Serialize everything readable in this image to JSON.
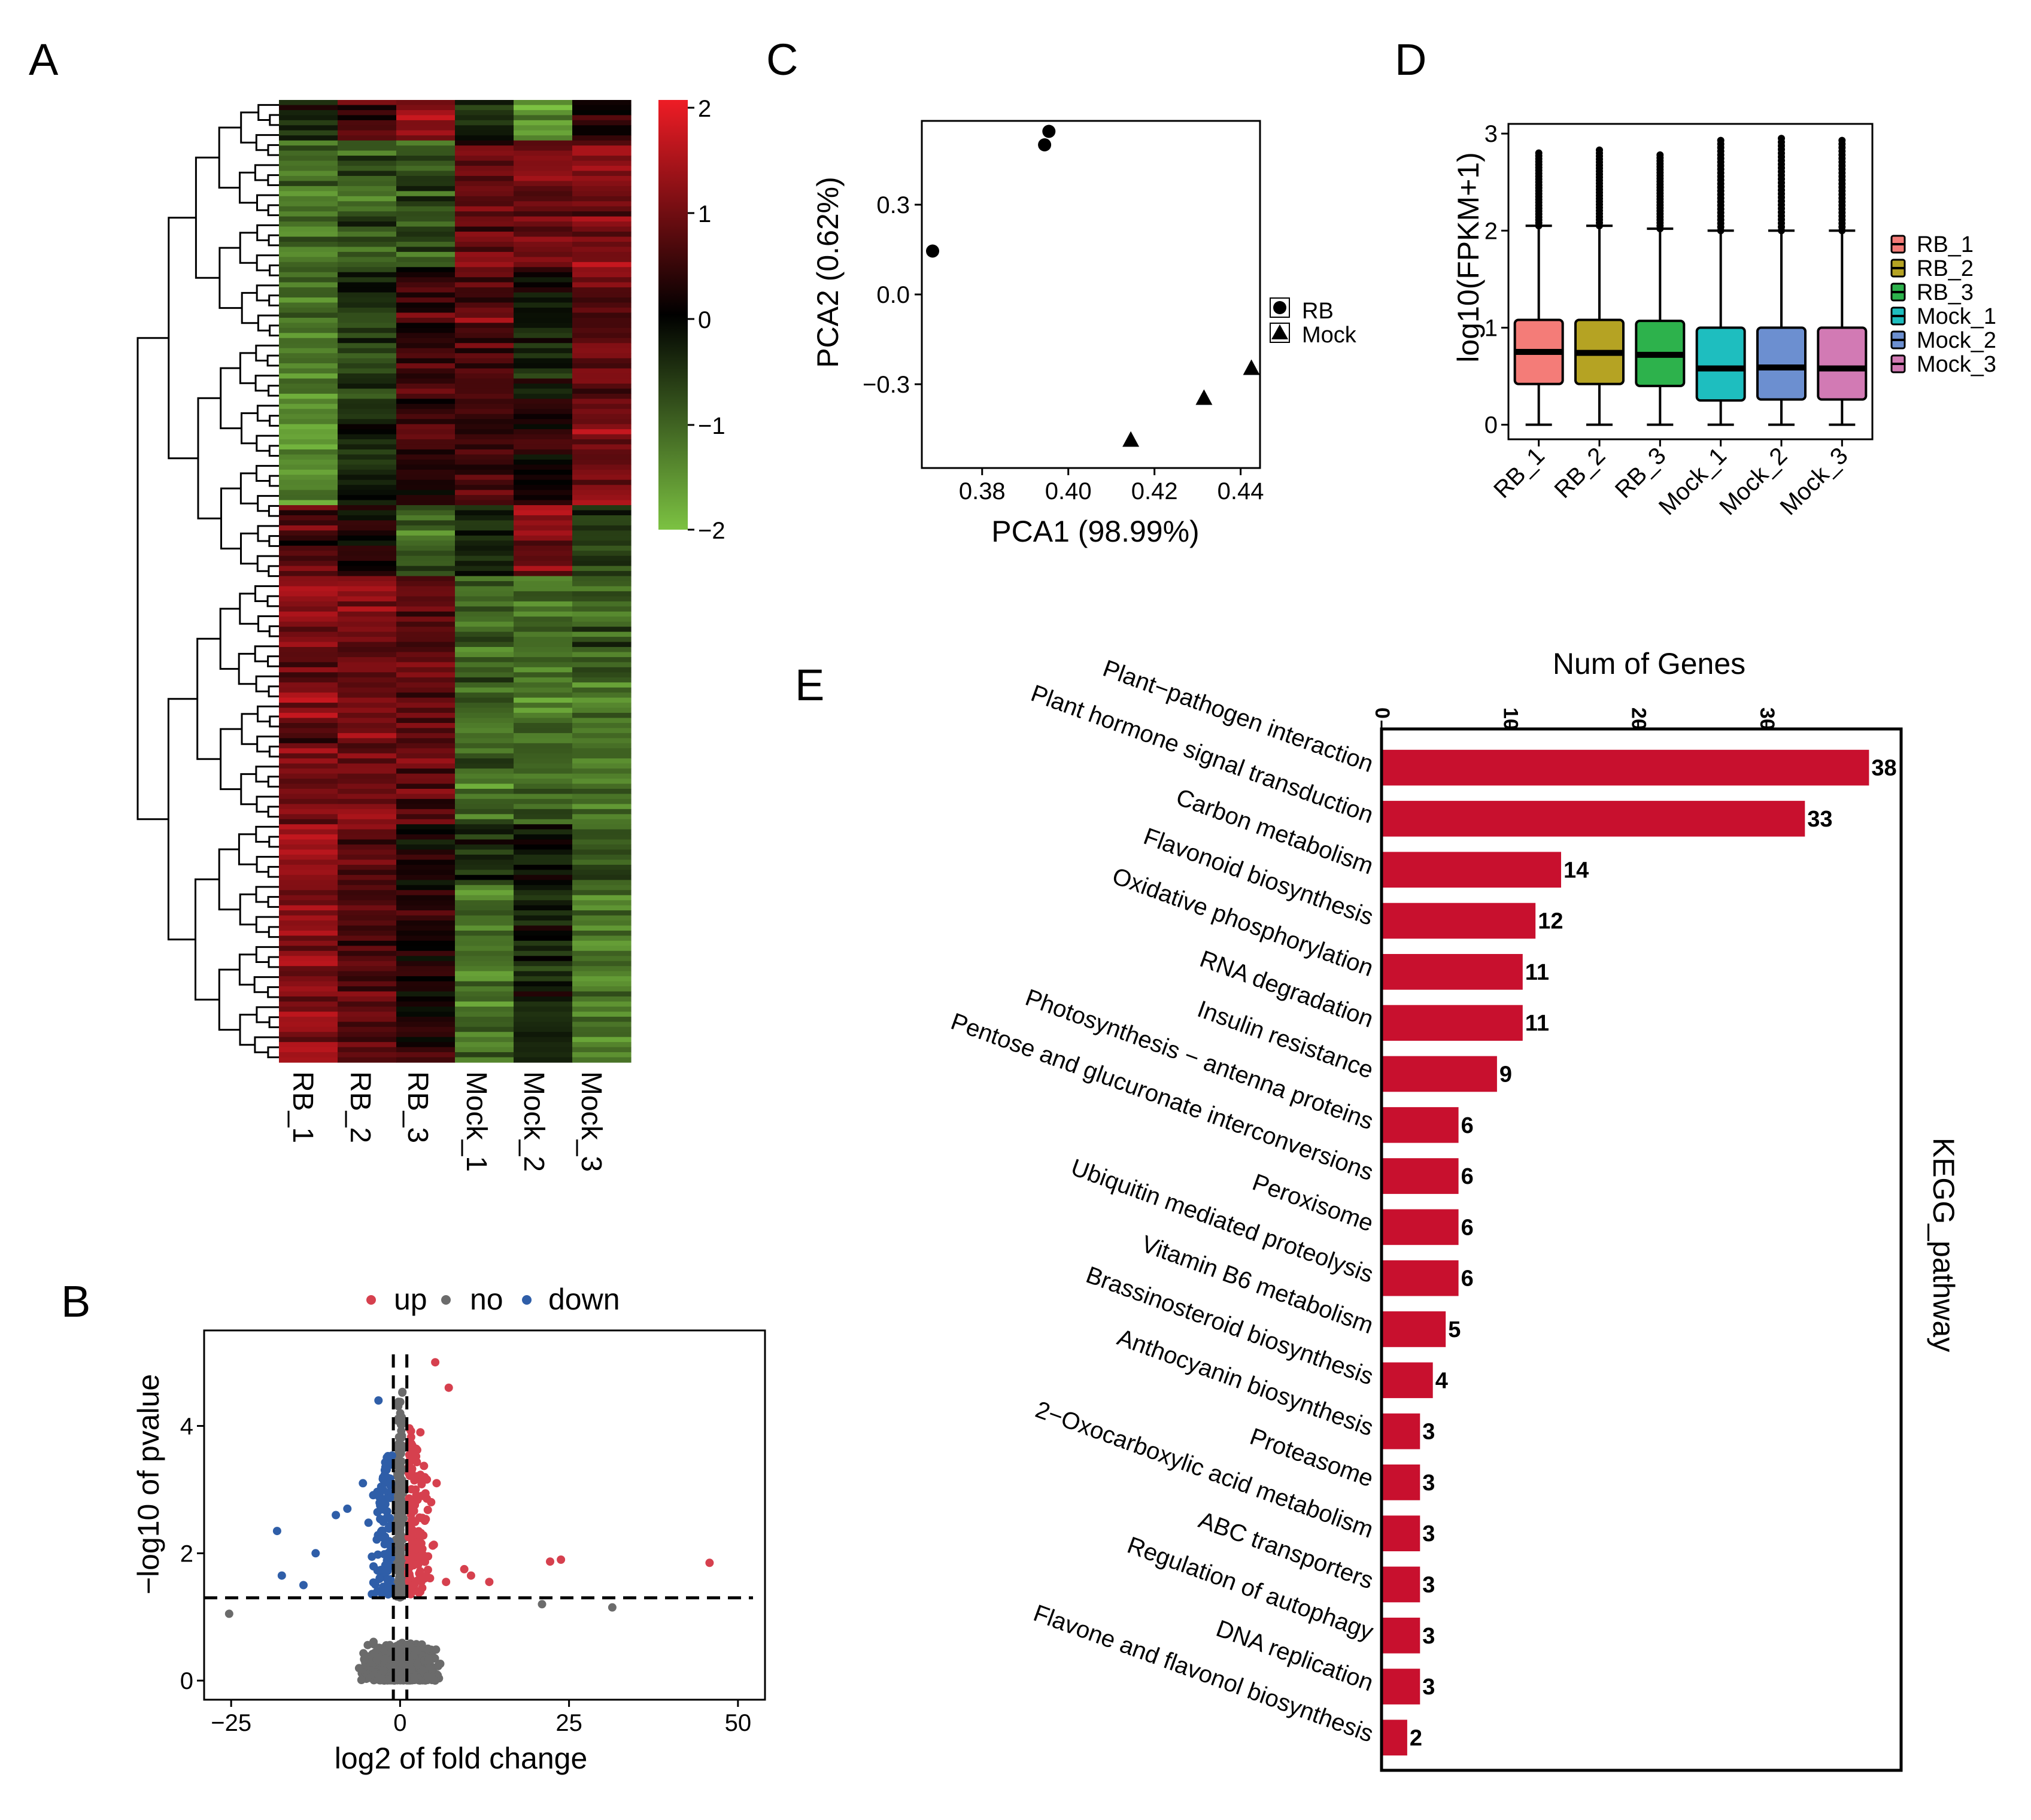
{
  "panel_letters": {
    "a": "A",
    "b": "B",
    "c": "C",
    "d": "D",
    "e": "E"
  },
  "heatmap": {
    "samples": [
      "RB_1",
      "RB_2",
      "RB_3",
      "Mock_1",
      "Mock_2",
      "Mock_3"
    ],
    "colorbar_ticks": [
      "2",
      "1",
      "0",
      "−1",
      "−2"
    ],
    "colors": {
      "high": "#ee1c25",
      "mid": "#000000",
      "low": "#7cc242"
    }
  },
  "chart_data": [
    {
      "id": "volcano",
      "type": "scatter",
      "legend": [
        {
          "name": "up",
          "color": "#d6404e"
        },
        {
          "name": "no",
          "color": "#6b6b6b"
        },
        {
          "name": "down",
          "color": "#2f5ea8"
        }
      ],
      "xlabel": "log2 of fold change",
      "ylabel": "−log10 of pvalue",
      "xlim": [
        -29,
        54
      ],
      "ylim": [
        -0.3,
        5.5
      ],
      "xticks": [
        -25,
        0,
        25,
        50
      ],
      "xtick_labels": [
        "−25",
        "0",
        "25",
        "50"
      ],
      "yticks": [
        0,
        2,
        4
      ],
      "ytick_labels": [
        "0",
        "2",
        "4"
      ],
      "thresholds": {
        "x": [
          -1,
          1
        ],
        "y": 1.3
      },
      "highlight_points": {
        "up": [
          [
            45.8,
            1.85
          ],
          [
            22.2,
            1.87
          ],
          [
            23.8,
            1.9
          ],
          [
            7.2,
            4.6
          ],
          [
            6.8,
            1.55
          ],
          [
            5.2,
            5.0
          ],
          [
            3.0,
            3.9
          ],
          [
            9.5,
            1.75
          ],
          [
            10.5,
            1.65
          ],
          [
            13.2,
            1.55
          ]
        ],
        "down": [
          [
            -18.2,
            2.35
          ],
          [
            -17.5,
            1.65
          ],
          [
            -12.5,
            2.0
          ],
          [
            -9.5,
            2.6
          ],
          [
            -7.8,
            2.7
          ],
          [
            -3.2,
            4.4
          ],
          [
            -5.5,
            3.1
          ],
          [
            -14.3,
            1.5
          ]
        ]
      },
      "outlier_no": [
        [
          31.4,
          1.15
        ],
        [
          -25.3,
          1.05
        ],
        [
          21.0,
          1.2
        ]
      ]
    },
    {
      "id": "pca",
      "type": "scatter",
      "xlabel": "PCA1 (98.99%)",
      "ylabel": "PCA2 (0.62%)",
      "xlim": [
        0.366,
        0.4445
      ],
      "ylim": [
        -0.58,
        0.58
      ],
      "xticks": [
        0.38,
        0.4,
        0.42,
        0.44
      ],
      "xtick_labels": [
        "0.38",
        "0.40",
        "0.42",
        "0.44"
      ],
      "yticks": [
        -0.3,
        0.0,
        0.3
      ],
      "ytick_labels": [
        "−0.3",
        "0.0",
        "0.3"
      ],
      "series": [
        {
          "name": "RB",
          "marker": "circle",
          "points": [
            [
              0.3685,
              0.145
            ],
            [
              0.3945,
              0.5
            ],
            [
              0.3955,
              0.545
            ]
          ]
        },
        {
          "name": "Mock",
          "marker": "triangle",
          "points": [
            [
              0.4145,
              -0.485
            ],
            [
              0.4315,
              -0.345
            ],
            [
              0.4425,
              -0.245
            ]
          ]
        }
      ]
    },
    {
      "id": "boxplot",
      "type": "box",
      "ylabel": "log10(FPKM+1)",
      "ylim": [
        -0.15,
        3.1
      ],
      "yticks": [
        0,
        1,
        2,
        3
      ],
      "ytick_labels": [
        "0",
        "1",
        "2",
        "3"
      ],
      "categories": [
        "RB_1",
        "RB_2",
        "RB_3",
        "Mock_1",
        "Mock_2",
        "Mock_3"
      ],
      "colors": [
        "#f47c78",
        "#b5a323",
        "#2db24c",
        "#1ebebf",
        "#6c8fd0",
        "#d27ab4"
      ],
      "boxes": [
        {
          "min": 0.0,
          "q1": 0.42,
          "median": 0.75,
          "q3": 1.08,
          "max": 2.05,
          "outlier_max": 2.8
        },
        {
          "min": 0.0,
          "q1": 0.42,
          "median": 0.74,
          "q3": 1.08,
          "max": 2.05,
          "outlier_max": 2.83
        },
        {
          "min": 0.0,
          "q1": 0.4,
          "median": 0.72,
          "q3": 1.07,
          "max": 2.02,
          "outlier_max": 2.78
        },
        {
          "min": 0.0,
          "q1": 0.25,
          "median": 0.58,
          "q3": 1.0,
          "max": 2.0,
          "outlier_max": 2.93
        },
        {
          "min": 0.0,
          "q1": 0.26,
          "median": 0.59,
          "q3": 1.0,
          "max": 2.0,
          "outlier_max": 2.95
        },
        {
          "min": 0.0,
          "q1": 0.26,
          "median": 0.58,
          "q3": 1.0,
          "max": 2.0,
          "outlier_max": 2.93
        }
      ]
    },
    {
      "id": "kegg",
      "type": "bar",
      "orientation": "horizontal",
      "xlabel": "Num of Genes",
      "ylabel": "KEGG_pathway",
      "xlim": [
        0,
        40.5
      ],
      "xticks": [
        0,
        10,
        20,
        30
      ],
      "xtick_labels": [
        "0",
        "10",
        "20",
        "30"
      ],
      "bar_color": "#c8102e",
      "categories": [
        "Plant−pathogen interaction",
        "Plant hormone signal transduction",
        "Carbon metabolism",
        "Flavonoid biosynthesis",
        "Oxidative phosphorylation",
        "RNA degradation",
        "Insulin resistance",
        "Photosynthesis − antenna proteins",
        "Pentose and glucuronate interconversions",
        "Peroxisome",
        "Ubiquitin mediated proteolysis",
        "Vitamin B6 metabolism",
        "Brassinosteroid biosynthesis",
        "Anthocyanin biosynthesis",
        "Proteasome",
        "2−Oxocarboxylic acid metabolism",
        "ABC transporters",
        "Regulation of autophagy",
        "DNA replication",
        "Flavone and flavonol biosynthesis"
      ],
      "values": [
        38,
        33,
        14,
        12,
        11,
        11,
        9,
        6,
        6,
        6,
        6,
        5,
        4,
        3,
        3,
        3,
        3,
        3,
        3,
        2
      ],
      "value_labels": [
        "38",
        "33",
        "14",
        "12",
        "11",
        "11",
        "9",
        "6",
        "6",
        "6",
        "6",
        "5",
        "4",
        "3",
        "3",
        "3",
        "3",
        "3",
        "3",
        "2"
      ]
    }
  ]
}
